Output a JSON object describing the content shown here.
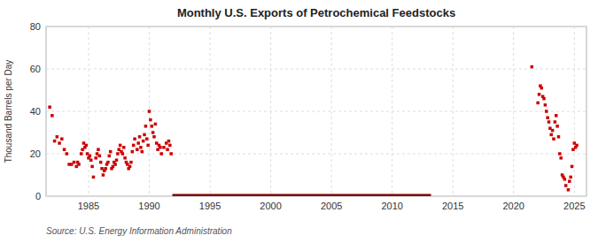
{
  "chart_data": {
    "type": "scatter",
    "title": "Monthly U.S. Exports of Petrochemical Feedstocks",
    "ylabel": "Thousand Barrels per Day",
    "annotation": "Source: U.S. Energy Information Administration",
    "xlim": [
      1981.5,
      2026.0
    ],
    "ylim": [
      0,
      80
    ],
    "xticks": [
      1985,
      1990,
      1995,
      2000,
      2005,
      2010,
      2015,
      2020,
      2025
    ],
    "yticks": [
      0,
      20,
      40,
      60,
      80
    ],
    "grid": true,
    "series": [
      {
        "type": "scatter",
        "marker": "square",
        "color": "#cc0000",
        "x": [
          1981.8,
          1982.0,
          1982.2,
          1982.4,
          1982.6,
          1982.8,
          1983.0,
          1983.2,
          1983.4,
          1983.6,
          1983.8,
          1984.0,
          1984.1,
          1984.2,
          1984.4,
          1984.5,
          1984.6,
          1984.7,
          1984.8,
          1984.9,
          1985.0,
          1985.1,
          1985.2,
          1985.3,
          1985.4,
          1985.6,
          1985.7,
          1985.8,
          1985.9,
          1986.0,
          1986.1,
          1986.2,
          1986.3,
          1986.4,
          1986.5,
          1986.6,
          1986.7,
          1986.8,
          1986.9,
          1987.0,
          1987.1,
          1987.2,
          1987.3,
          1987.4,
          1987.5,
          1987.6,
          1987.7,
          1987.8,
          1987.9,
          1988.0,
          1988.1,
          1988.2,
          1988.3,
          1988.4,
          1988.5,
          1988.6,
          1988.7,
          1988.8,
          1989.0,
          1989.1,
          1989.2,
          1989.3,
          1989.4,
          1989.5,
          1989.6,
          1989.7,
          1989.8,
          1989.9,
          1990.0,
          1990.1,
          1990.2,
          1990.3,
          1990.4,
          1990.5,
          1990.6,
          1990.7,
          1990.8,
          1990.9,
          1991.0,
          1991.2,
          1991.4,
          1991.5,
          1991.6,
          1991.7,
          1991.8
        ],
        "values": [
          42,
          38,
          26,
          28,
          25,
          27,
          22,
          20,
          15,
          15,
          16,
          14,
          16,
          15,
          20,
          22,
          25,
          23,
          24,
          20,
          18,
          19,
          17,
          14,
          9,
          18,
          20,
          22,
          19,
          16,
          13,
          10,
          12,
          13,
          15,
          16,
          19,
          21,
          13,
          14,
          16,
          15,
          17,
          20,
          22,
          24,
          21,
          20,
          23,
          18,
          16,
          15,
          13,
          14,
          16,
          21,
          24,
          27,
          22,
          25,
          28,
          23,
          21,
          26,
          29,
          33,
          27,
          24,
          40,
          36,
          33,
          30,
          28,
          34,
          25,
          22,
          24,
          23,
          20,
          23,
          25,
          22,
          26,
          24,
          20
        ]
      },
      {
        "type": "line",
        "color": "#800000",
        "x": [
          1991.9,
          2013.2
        ],
        "values": [
          0,
          0
        ]
      },
      {
        "type": "scatter",
        "marker": "square",
        "color": "#cc0000",
        "x": [
          2021.5,
          2022.0,
          2022.1,
          2022.2,
          2022.3,
          2022.4,
          2022.5,
          2022.6,
          2022.7,
          2022.8,
          2022.9,
          2023.0,
          2023.1,
          2023.2,
          2023.3,
          2023.4,
          2023.5,
          2023.6,
          2023.7,
          2023.8,
          2023.9,
          2024.0,
          2024.1,
          2024.2,
          2024.3,
          2024.5,
          2024.6,
          2024.7,
          2024.8,
          2024.9,
          2025.0,
          2025.1,
          2025.2
        ],
        "values": [
          61,
          44,
          48,
          52,
          51,
          47,
          46,
          43,
          40,
          37,
          35,
          32,
          29,
          31,
          27,
          35,
          38,
          33,
          28,
          20,
          18,
          10,
          9,
          8,
          5,
          3,
          7,
          9,
          14,
          22,
          25,
          23,
          24
        ]
      }
    ]
  }
}
